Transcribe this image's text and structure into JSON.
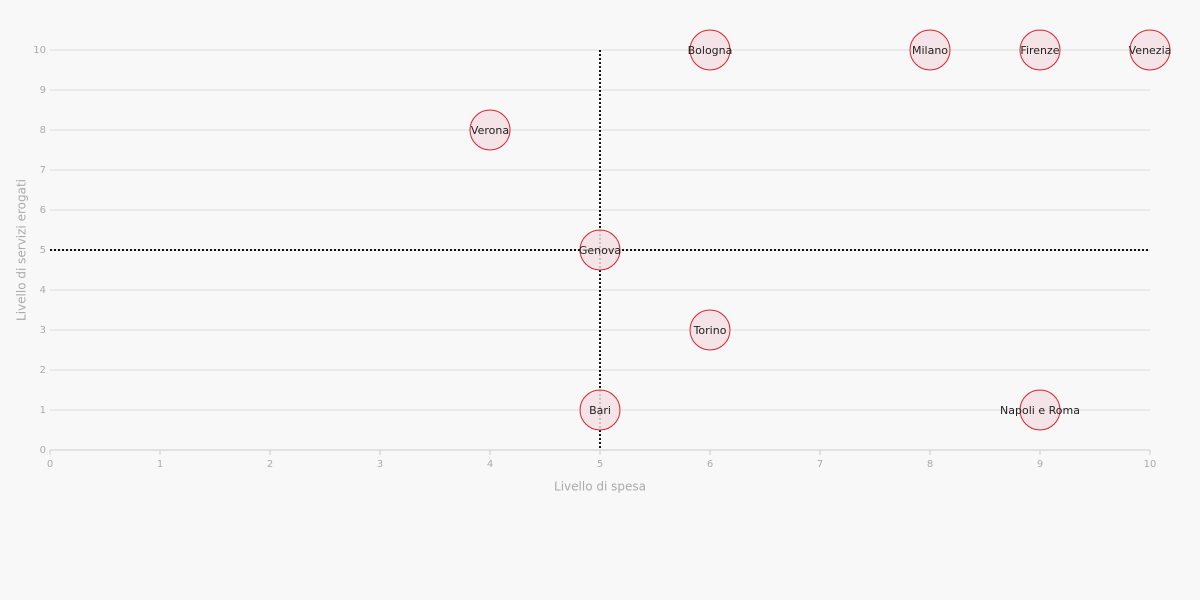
{
  "chart_data": {
    "type": "scatter",
    "x_label": "Livello di spesa",
    "y_label": "Livello di servizi erogati",
    "point_labels": [
      "Bologna",
      "Milano",
      "Firenze",
      "Venezia",
      "Verona",
      "Genova",
      "Torino",
      "Bari",
      "Napoli e Roma"
    ],
    "x": [
      6,
      8,
      9,
      10,
      4,
      5,
      6,
      5,
      9
    ],
    "values": [
      10,
      10,
      10,
      10,
      8,
      5,
      3,
      1,
      1
    ],
    "color": "#d9232e",
    "fill": "#f5e1e4",
    "xlim": [
      0,
      10
    ],
    "ylim": [
      0,
      10
    ],
    "xticks": [
      0,
      1,
      2,
      3,
      4,
      5,
      6,
      7,
      8,
      9,
      10
    ],
    "yticks": [
      0,
      1,
      2,
      3,
      4,
      5,
      6,
      7,
      8,
      9,
      10
    ],
    "grid": true,
    "reference_lines": {
      "x": 5,
      "y": 5
    }
  }
}
